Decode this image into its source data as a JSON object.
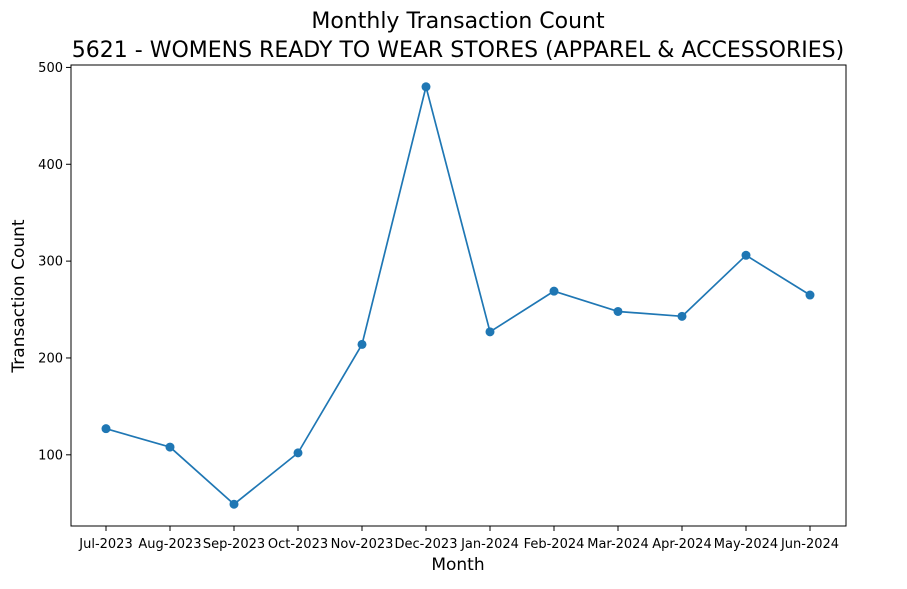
{
  "chart_data": {
    "type": "line",
    "title": "Monthly Transaction Count",
    "subtitle": "5621 - WOMENS READY TO WEAR STORES (APPAREL & ACCESSORIES)",
    "xlabel": "Month",
    "ylabel": "Transaction Count",
    "categories": [
      "Jul-2023",
      "Aug-2023",
      "Sep-2023",
      "Oct-2023",
      "Nov-2023",
      "Dec-2023",
      "Jan-2024",
      "Feb-2024",
      "Mar-2024",
      "Apr-2024",
      "May-2024",
      "Jun-2024"
    ],
    "series": [
      {
        "values": [
          127,
          108,
          49,
          102,
          214,
          480,
          227,
          269,
          248,
          243,
          306,
          265
        ],
        "color": "#1f77b4",
        "marker": "circle"
      }
    ],
    "ylim": [
      26.5,
      502.5
    ],
    "yticks": [
      100,
      200,
      300,
      400,
      500
    ],
    "grid": false,
    "legend": false
  }
}
